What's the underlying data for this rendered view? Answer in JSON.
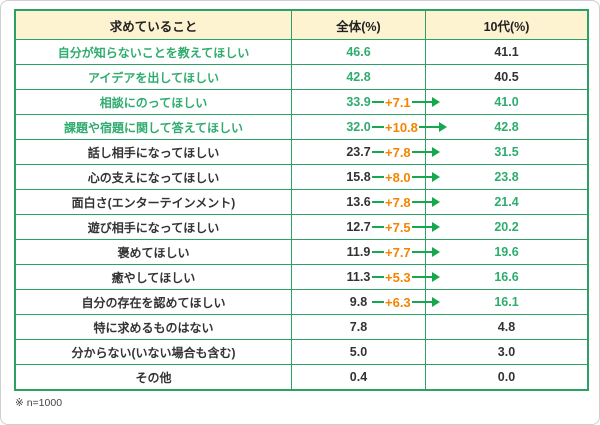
{
  "chart_data": {
    "type": "table",
    "columns": [
      "求めていること",
      "全体(%)",
      "10代(%)"
    ],
    "rows": [
      {
        "label": "自分が知らないことを教えてほしい",
        "overall": "46.6",
        "delta": "",
        "teen": "41.1",
        "label_green": true,
        "overall_green": true,
        "teen_green": false
      },
      {
        "label": "アイデアを出してほしい",
        "overall": "42.8",
        "delta": "",
        "teen": "40.5",
        "label_green": true,
        "overall_green": true,
        "teen_green": false
      },
      {
        "label": "相談にのってほしい",
        "overall": "33.9",
        "delta": "+7.1",
        "teen": "41.0",
        "label_green": true,
        "overall_green": true,
        "teen_green": true
      },
      {
        "label": "課題や宿題に関して答えてほしい",
        "overall": "32.0",
        "delta": "+10.8",
        "teen": "42.8",
        "label_green": true,
        "overall_green": true,
        "teen_green": true
      },
      {
        "label": "話し相手になってほしい",
        "overall": "23.7",
        "delta": "+7.8",
        "teen": "31.5",
        "label_green": false,
        "overall_green": false,
        "teen_green": true
      },
      {
        "label": "心の支えになってほしい",
        "overall": "15.8",
        "delta": "+8.0",
        "teen": "23.8",
        "label_green": false,
        "overall_green": false,
        "teen_green": true
      },
      {
        "label": "面白さ(エンターテインメント)",
        "overall": "13.6",
        "delta": "+7.8",
        "teen": "21.4",
        "label_green": false,
        "overall_green": false,
        "teen_green": true
      },
      {
        "label": "遊び相手になってほしい",
        "overall": "12.7",
        "delta": "+7.5",
        "teen": "20.2",
        "label_green": false,
        "overall_green": false,
        "teen_green": true
      },
      {
        "label": "褒めてほしい",
        "overall": "11.9",
        "delta": "+7.7",
        "teen": "19.6",
        "label_green": false,
        "overall_green": false,
        "teen_green": true
      },
      {
        "label": "癒やしてほしい",
        "overall": "11.3",
        "delta": "+5.3",
        "teen": "16.6",
        "label_green": false,
        "overall_green": false,
        "teen_green": true
      },
      {
        "label": "自分の存在を認めてほしい",
        "overall": "9.8",
        "delta": "+6.3",
        "teen": "16.1",
        "label_green": false,
        "overall_green": false,
        "teen_green": true
      },
      {
        "label": "特に求めるものはない",
        "overall": "7.8",
        "delta": "",
        "teen": "4.8",
        "label_green": false,
        "overall_green": false,
        "teen_green": false
      },
      {
        "label": "分からない(いない場合も含む)",
        "overall": "5.0",
        "delta": "",
        "teen": "3.0",
        "label_green": false,
        "overall_green": false,
        "teen_green": false
      },
      {
        "label": "その他",
        "overall": "0.4",
        "delta": "",
        "teen": "0.0",
        "label_green": false,
        "overall_green": false,
        "teen_green": false
      }
    ]
  },
  "footnote": "※ n=1000",
  "colors": {
    "border_green": "#2ba164",
    "accent_green": "#2fac6e",
    "arrow_green": "#17a74e",
    "delta_orange": "#f38500",
    "header_bg": "#fdf3d1"
  }
}
